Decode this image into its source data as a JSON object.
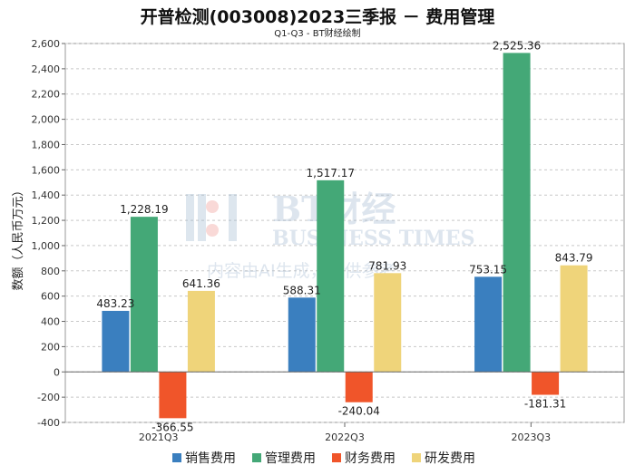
{
  "title": "开普检测(003008)2023三季报 － 费用管理",
  "subtitle": "Q1-Q3 - BT财经绘制",
  "watermark": {
    "brand": "BT财经",
    "brand_en": "BUSINESS TIMES",
    "note": "内容由AI生成，仅供参考"
  },
  "chart_data": {
    "type": "bar",
    "title": "开普检测(003008)2023三季报 － 费用管理",
    "subtitle": "Q1-Q3 - BT财经绘制",
    "ylabel": "数额（人民币万元）",
    "xlabel": "",
    "categories": [
      "2021Q3",
      "2022Q3",
      "2023Q3"
    ],
    "ylim": [
      -400,
      2600
    ],
    "yticks": [
      -400,
      -200,
      0,
      200,
      400,
      600,
      800,
      1000,
      1200,
      1400,
      1600,
      1800,
      2000,
      2200,
      2400,
      2600
    ],
    "ytick_labels": [
      "-400",
      "-200",
      "0",
      "200",
      "400",
      "600",
      "800",
      "1,000",
      "1,200",
      "1,400",
      "1,600",
      "1,800",
      "2,000",
      "2,200",
      "2,400",
      "2,600"
    ],
    "grid": true,
    "legend_position": "bottom",
    "series": [
      {
        "name": "销售费用",
        "color": "#3a7fbf",
        "values": [
          483.23,
          588.31,
          753.15
        ],
        "labels": [
          "483.23",
          "588.31",
          "753.15"
        ]
      },
      {
        "name": "管理费用",
        "color": "#44a877",
        "values": [
          1228.19,
          1517.17,
          2525.36
        ],
        "labels": [
          "1,228.19",
          "1,517.17",
          "2,525.36"
        ]
      },
      {
        "name": "财务费用",
        "color": "#f0552a",
        "values": [
          -366.55,
          -240.04,
          -181.31
        ],
        "labels": [
          "-366.55",
          "-240.04",
          "-181.31"
        ]
      },
      {
        "name": "研发费用",
        "color": "#efd47a",
        "values": [
          641.36,
          781.93,
          843.79
        ],
        "labels": [
          "641.36",
          "781.93",
          "843.79"
        ]
      }
    ]
  }
}
